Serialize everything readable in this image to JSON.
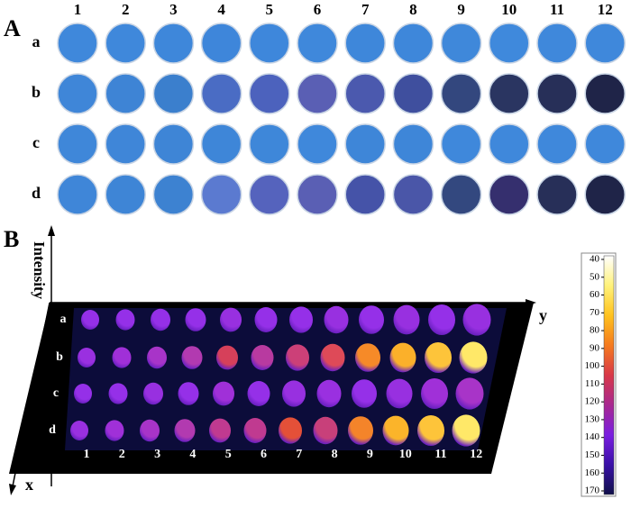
{
  "panel_a": {
    "label": "A",
    "columns": [
      "1",
      "2",
      "3",
      "4",
      "5",
      "6",
      "7",
      "8",
      "9",
      "10",
      "11",
      "12"
    ],
    "rows": [
      {
        "label": "a",
        "colors": [
          "#3f88db",
          "#3f88db",
          "#3e87da",
          "#3e86da",
          "#3e87db",
          "#3f88db",
          "#3e87da",
          "#3e87da",
          "#3f88da",
          "#3f89dc",
          "#3f88db",
          "#3f88db"
        ]
      },
      {
        "label": "b",
        "colors": [
          "#3f86d8",
          "#3e84d5",
          "#3b7fcd",
          "#4a6cc4",
          "#4c62bd",
          "#5a5fb4",
          "#4b59ae",
          "#3f4f9e",
          "#33477e",
          "#2a3561",
          "#272f58",
          "#1f2448"
        ]
      },
      {
        "label": "c",
        "colors": [
          "#3f87d9",
          "#3f86d8",
          "#3e85d6",
          "#3e86d8",
          "#3e87d9",
          "#3f88db",
          "#3e86d8",
          "#3e86d8",
          "#3f88db",
          "#3f88db",
          "#3f88db",
          "#3f88db"
        ]
      },
      {
        "label": "d",
        "colors": [
          "#3f86d8",
          "#3e85d6",
          "#3d82d1",
          "#5b7ad0",
          "#5563bd",
          "#5a5fb4",
          "#4553a8",
          "#4a56a8",
          "#33487f",
          "#352f6e",
          "#272f58",
          "#1f2448"
        ]
      }
    ]
  },
  "panel_b": {
    "label": "B",
    "axis_z": "Intensity",
    "axis_y": "y",
    "axis_x": "x",
    "columns": [
      "1",
      "2",
      "3",
      "4",
      "5",
      "6",
      "7",
      "8",
      "9",
      "10",
      "11",
      "12"
    ],
    "rows": [
      {
        "label": "a",
        "colors": [
          "#9530e8",
          "#9530e8",
          "#9530e8",
          "#9530e8",
          "#9830e0",
          "#9530e8",
          "#9530e8",
          "#9830e0",
          "#9530e8",
          "#9830e0",
          "#9530e8",
          "#9830e0"
        ]
      },
      {
        "label": "b",
        "colors": [
          "#9a30e0",
          "#a030d8",
          "#a834c8",
          "#b23ab0",
          "#d6405a",
          "#b83aa0",
          "#cc4078",
          "#de4a58",
          "#f68a28",
          "#fbb02a",
          "#fdc43a",
          "#ffe868"
        ]
      },
      {
        "label": "c",
        "colors": [
          "#9530e8",
          "#9530e8",
          "#9830e0",
          "#9530e8",
          "#a030d8",
          "#9530e8",
          "#9830e0",
          "#9a30e0",
          "#9530e8",
          "#9830e0",
          "#a030d8",
          "#a834c8"
        ]
      },
      {
        "label": "d",
        "colors": [
          "#9a30e0",
          "#a030d8",
          "#a834c8",
          "#b23ab0",
          "#c03a90",
          "#c03a90",
          "#e45038",
          "#c8407a",
          "#f4842a",
          "#fbb42a",
          "#fdc43a",
          "#ffe868"
        ]
      }
    ],
    "colorbar": {
      "ticks": [
        40,
        50,
        60,
        70,
        80,
        90,
        100,
        110,
        120,
        130,
        140,
        150,
        160,
        170
      ],
      "colors": [
        "#ffffff",
        "#fff27a",
        "#ffc21e",
        "#f57a1e",
        "#d83848",
        "#a82890",
        "#7a1ee0",
        "#3a10a8",
        "#10104a"
      ]
    }
  }
}
